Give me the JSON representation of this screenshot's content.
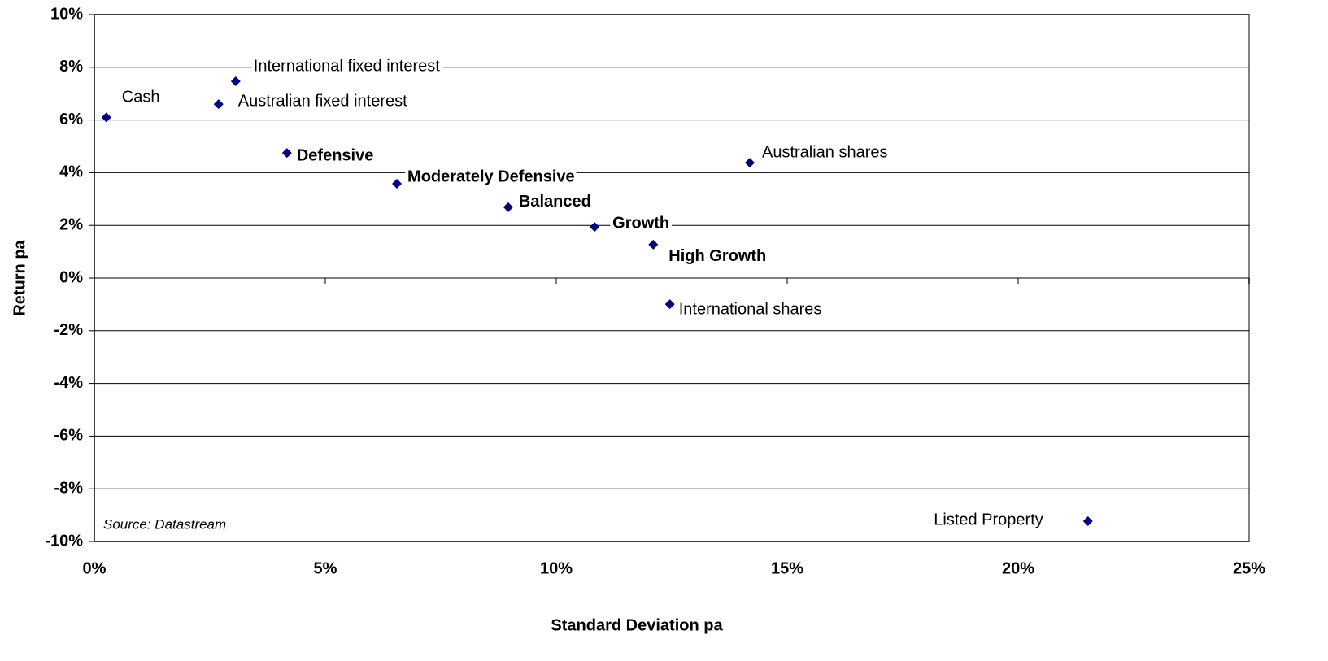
{
  "chart_data": {
    "type": "scatter",
    "x_label": "Standard Deviation pa",
    "y_label": "Return pa",
    "annotation": "Source: Datastream",
    "point_labels": [
      "Cash",
      "International fixed interest",
      "Australian fixed interest",
      "Defensive",
      "Moderately Defensive",
      "Balanced",
      "Growth",
      "High Growth",
      "International shares",
      "Australian shares",
      "Listed Property"
    ],
    "bold_labels": [
      false,
      false,
      false,
      true,
      true,
      true,
      true,
      true,
      false,
      false,
      false
    ],
    "x": [
      0.26,
      3.06,
      2.69,
      4.17,
      6.55,
      8.96,
      10.83,
      12.1,
      12.46,
      14.19,
      21.51
    ],
    "values": [
      6.1,
      7.47,
      6.6,
      4.75,
      3.58,
      2.69,
      1.94,
      1.27,
      -0.99,
      4.38,
      -9.23
    ],
    "color": "#000080",
    "xlim": [
      0,
      25
    ],
    "xticks": [
      {
        "value": 0,
        "label": "0%"
      },
      {
        "value": 5,
        "label": "5%"
      },
      {
        "value": 10,
        "label": "10%"
      },
      {
        "value": 15,
        "label": "15%"
      },
      {
        "value": 20,
        "label": "20%"
      },
      {
        "value": 25,
        "label": "25%"
      }
    ],
    "ylim": [
      -10,
      10
    ],
    "yticks": [
      {
        "value": -10,
        "label": "-10%"
      },
      {
        "value": -8,
        "label": "-8%"
      },
      {
        "value": -6,
        "label": "-6%"
      },
      {
        "value": -4,
        "label": "-4%"
      },
      {
        "value": -2,
        "label": "-2%"
      },
      {
        "value": 0,
        "label": "0%"
      },
      {
        "value": 2,
        "label": "2%"
      },
      {
        "value": 4,
        "label": "4%"
      },
      {
        "value": 6,
        "label": "6%"
      },
      {
        "value": 8,
        "label": "8%"
      },
      {
        "value": 10,
        "label": "10%"
      }
    ],
    "grid": true
  }
}
